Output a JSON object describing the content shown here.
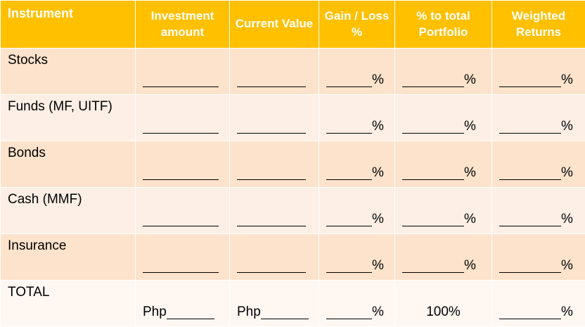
{
  "headers": [
    "Instrument",
    "Investment amount",
    "Current Value",
    "Gain / Loss %",
    "% to total Portfolio",
    "Weighted Returns"
  ],
  "rows": [
    {
      "label": "Stocks"
    },
    {
      "label": "Funds (MF, UITF)"
    },
    {
      "label": "Bonds"
    },
    {
      "label": "Cash (MMF)"
    },
    {
      "label": "Insurance"
    }
  ],
  "total": {
    "label": "TOTAL",
    "investment_prefix": "Php",
    "current_prefix": "Php",
    "portfolio_value": "100%"
  },
  "percent_symbol": "%",
  "colors": {
    "header": "#ffc000",
    "row_dark": "#fde3cc",
    "row_light": "#feefe6",
    "row_total": "#fff7f2"
  }
}
